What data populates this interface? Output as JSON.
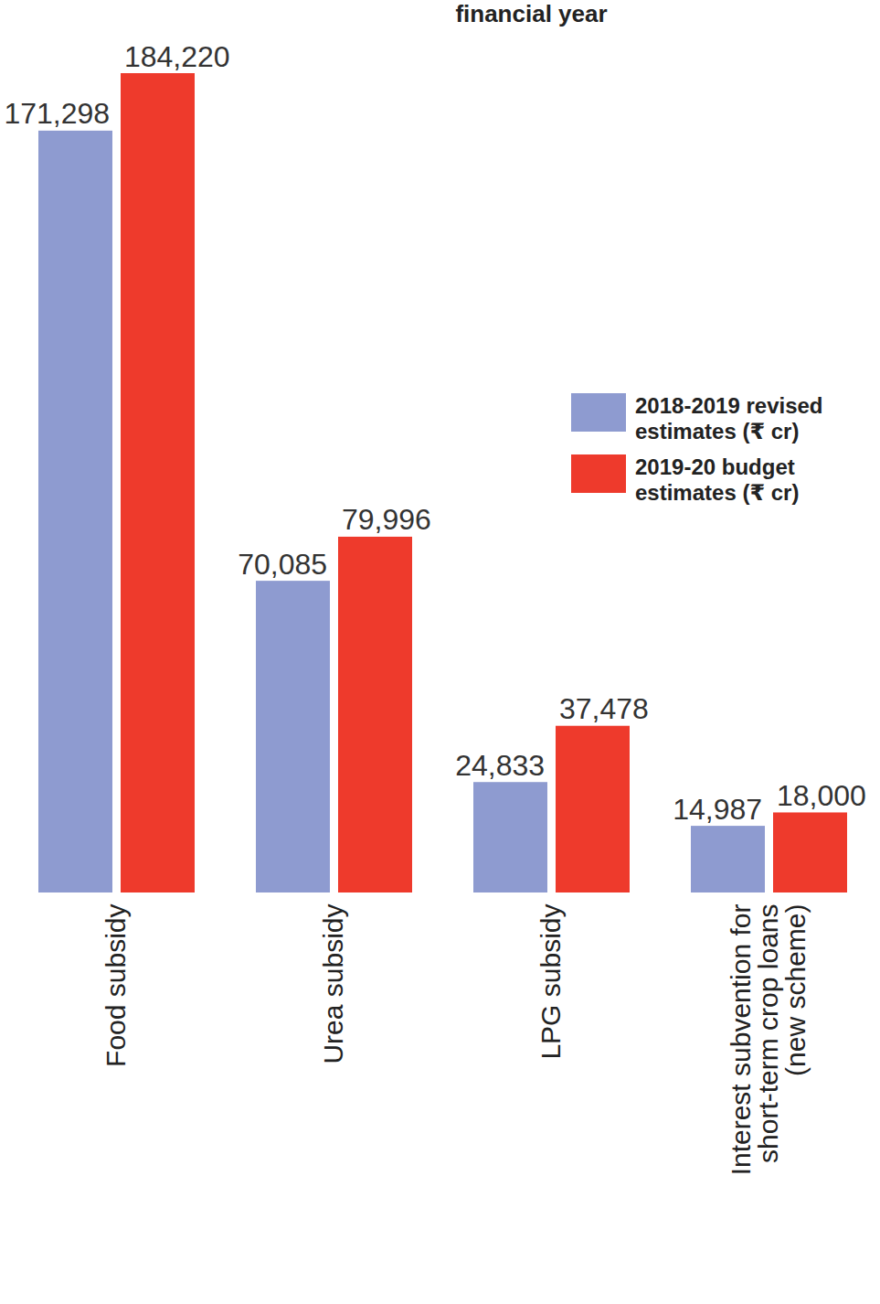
{
  "chart_data": {
    "type": "bar",
    "title": "financial year",
    "categories": [
      "Food subsidy",
      "Urea subsidy",
      "LPG subsidy",
      "Interest subvention for short-term crop loans (new scheme)"
    ],
    "series": [
      {
        "name": "2018-2019 revised estimates (₹ cr)",
        "color": "#8e9bd0",
        "values": [
          171298,
          70085,
          24833,
          14987
        ],
        "value_labels": [
          "171,298",
          "70,085",
          "24,833",
          "14,987"
        ]
      },
      {
        "name": "2019-20 budget estimates (₹ cr)",
        "color": "#ee3a2c",
        "values": [
          184220,
          79996,
          37478,
          18000
        ],
        "value_labels": [
          "184,220",
          "79,996",
          "37,478",
          "18,000"
        ]
      }
    ],
    "ylim": [
      0,
      184220
    ],
    "grid": false,
    "legend": "right",
    "data_labels": true,
    "tick_labels": "x"
  }
}
